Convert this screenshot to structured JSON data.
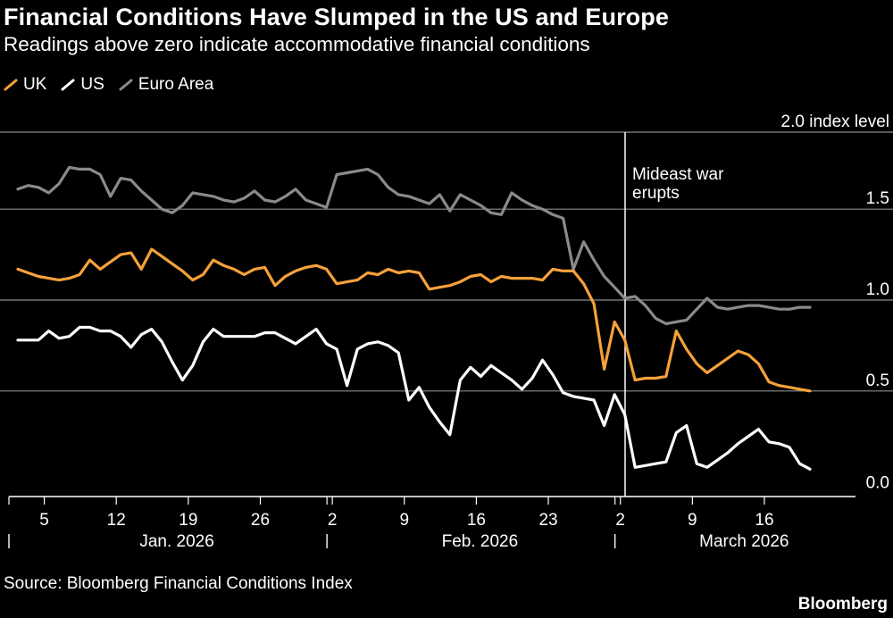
{
  "header": {
    "title": "Financial Conditions Have Slumped in the US and Europe",
    "subtitle": "Readings above zero indicate accommodative financial conditions"
  },
  "legend": [
    {
      "label": "UK",
      "color": "#f5a13a"
    },
    {
      "label": "US",
      "color": "#ffffff"
    },
    {
      "label": "Euro Area",
      "color": "#8a8a8a"
    }
  ],
  "footer": {
    "source": "Source: Bloomberg Financial Conditions Index",
    "brand": "Bloomberg"
  },
  "chart_data": {
    "type": "line",
    "title": "Financial Conditions Have Slumped in the US and Europe",
    "subtitle": "Readings above zero indicate accommodative financial conditions",
    "xlabel": "",
    "ylabel": "index level",
    "ylim": [
      -0.05,
      2.0
    ],
    "xlim": [
      0.0,
      78.0
    ],
    "grid": true,
    "y_ticks": [
      {
        "value": 0.0,
        "label": "0.0"
      },
      {
        "value": 0.5,
        "label": "0.5"
      },
      {
        "value": 1.0,
        "label": "1.0"
      },
      {
        "value": 1.5,
        "label": "1.5"
      },
      {
        "value": 2.0,
        "label": "2.0 index level"
      }
    ],
    "x_ticks": [
      {
        "day": 4,
        "label": "5"
      },
      {
        "day": 11,
        "label": "12"
      },
      {
        "day": 18,
        "label": "19"
      },
      {
        "day": 25,
        "label": "26"
      },
      {
        "day": 32,
        "label": "2"
      },
      {
        "day": 39,
        "label": "9"
      },
      {
        "day": 46,
        "label": "16"
      },
      {
        "day": 53,
        "label": "23"
      },
      {
        "day": 60,
        "label": "2"
      },
      {
        "day": 67,
        "label": "9"
      },
      {
        "day": 74,
        "label": "16"
      }
    ],
    "months": [
      {
        "label": "Jan. 2026",
        "start": 0.0,
        "end": 31.0
      },
      {
        "label": "Feb. 2026",
        "start": 31.0,
        "end": 59.0
      },
      {
        "label": "March 2026",
        "start": 59.0,
        "end": 78.0
      }
    ],
    "annotations": [
      {
        "day": 56.5,
        "text": [
          "Mideast war",
          "erupts"
        ]
      }
    ],
    "series": [
      {
        "name": "UK",
        "color": "#f5a13a",
        "days": [
          0,
          1,
          2,
          3,
          4,
          5,
          6,
          7,
          8,
          9,
          10,
          11,
          12,
          13,
          14,
          15,
          16,
          17,
          18,
          19,
          20,
          21,
          22,
          23,
          24,
          25,
          26,
          27,
          28,
          29,
          30,
          31,
          32,
          33,
          34,
          35,
          36,
          37,
          38,
          39,
          40,
          41,
          42,
          43,
          44,
          45,
          46,
          47,
          48,
          49,
          50,
          51,
          52,
          53,
          54,
          55,
          56,
          57,
          58,
          59,
          60,
          61,
          62,
          63,
          64,
          65,
          66,
          67,
          68,
          69,
          70,
          71,
          72,
          73,
          74,
          75,
          76,
          77
        ],
        "values": [
          1.17,
          1.15,
          1.13,
          1.12,
          1.11,
          1.12,
          1.14,
          1.22,
          1.17,
          1.21,
          1.25,
          1.26,
          1.17,
          1.28,
          1.24,
          1.2,
          1.16,
          1.11,
          1.14,
          1.22,
          1.19,
          1.17,
          1.14,
          1.17,
          1.18,
          1.08,
          1.13,
          1.16,
          1.18,
          1.19,
          1.17,
          1.09,
          1.1,
          1.11,
          1.15,
          1.14,
          1.17,
          1.15,
          1.16,
          1.15,
          1.06,
          1.07,
          1.08,
          1.1,
          1.13,
          1.14,
          1.1,
          1.13,
          1.12,
          1.12,
          1.12,
          1.11,
          1.17,
          1.16,
          1.16,
          1.09,
          0.98,
          0.62,
          0.88,
          0.78,
          0.56,
          0.57,
          0.57,
          0.58,
          0.83,
          0.73,
          0.65,
          0.6,
          0.64,
          0.68,
          0.72,
          0.7,
          0.65,
          0.55,
          0.53,
          0.52,
          0.51,
          0.5
        ]
      },
      {
        "name": "US",
        "color": "#ffffff",
        "days": [
          0,
          1,
          2,
          3,
          4,
          5,
          6,
          7,
          8,
          9,
          10,
          11,
          12,
          13,
          14,
          15,
          16,
          17,
          18,
          19,
          20,
          21,
          22,
          23,
          24,
          25,
          26,
          27,
          28,
          29,
          30,
          31,
          32,
          33,
          34,
          35,
          36,
          37,
          38,
          39,
          40,
          41,
          42,
          43,
          44,
          45,
          46,
          47,
          48,
          49,
          50,
          51,
          52,
          53,
          54,
          55,
          56,
          57,
          58,
          59,
          60,
          61,
          62,
          63,
          64,
          65,
          66,
          67,
          68,
          69,
          70,
          71,
          72,
          73,
          74,
          75,
          76,
          77
        ],
        "values": [
          0.78,
          0.78,
          0.78,
          0.83,
          0.79,
          0.8,
          0.85,
          0.85,
          0.83,
          0.83,
          0.8,
          0.74,
          0.81,
          0.84,
          0.77,
          0.66,
          0.56,
          0.64,
          0.77,
          0.84,
          0.8,
          0.8,
          0.8,
          0.8,
          0.82,
          0.82,
          0.79,
          0.76,
          0.8,
          0.84,
          0.76,
          0.73,
          0.53,
          0.73,
          0.76,
          0.77,
          0.75,
          0.71,
          0.45,
          0.52,
          0.41,
          0.33,
          0.26,
          0.56,
          0.63,
          0.58,
          0.64,
          0.6,
          0.56,
          0.51,
          0.57,
          0.67,
          0.59,
          0.49,
          0.47,
          0.46,
          0.45,
          0.31,
          0.48,
          0.37,
          0.08,
          0.09,
          0.1,
          0.11,
          0.27,
          0.31,
          0.1,
          0.08,
          0.12,
          0.16,
          0.21,
          0.25,
          0.29,
          0.22,
          0.21,
          0.19,
          0.1,
          0.07
        ]
      },
      {
        "name": "Euro Area",
        "color": "#8a8a8a",
        "days": [
          0,
          1,
          2,
          3,
          4,
          5,
          6,
          7,
          8,
          9,
          10,
          11,
          12,
          13,
          14,
          15,
          16,
          17,
          18,
          19,
          20,
          21,
          22,
          23,
          24,
          25,
          26,
          27,
          28,
          29,
          30,
          31,
          32,
          33,
          34,
          35,
          36,
          37,
          38,
          39,
          40,
          41,
          42,
          43,
          44,
          45,
          46,
          47,
          48,
          49,
          50,
          51,
          52,
          53,
          54,
          55,
          56,
          57,
          58,
          59,
          60,
          61,
          62,
          63,
          64,
          65,
          66,
          67,
          68,
          69,
          70,
          71,
          72,
          73,
          74,
          75,
          76,
          77
        ],
        "values": [
          1.61,
          1.63,
          1.62,
          1.59,
          1.64,
          1.73,
          1.72,
          1.72,
          1.69,
          1.57,
          1.67,
          1.66,
          1.6,
          1.55,
          1.5,
          1.48,
          1.52,
          1.59,
          1.58,
          1.57,
          1.55,
          1.54,
          1.56,
          1.6,
          1.55,
          1.54,
          1.57,
          1.61,
          1.55,
          1.53,
          1.51,
          1.69,
          1.7,
          1.71,
          1.72,
          1.69,
          1.62,
          1.58,
          1.57,
          1.55,
          1.53,
          1.58,
          1.49,
          1.58,
          1.55,
          1.52,
          1.48,
          1.47,
          1.59,
          1.55,
          1.52,
          1.5,
          1.47,
          1.45,
          1.17,
          1.32,
          1.22,
          1.13,
          1.07,
          1.01,
          1.02,
          0.97,
          0.9,
          0.87,
          0.88,
          0.89,
          0.95,
          1.01,
          0.96,
          0.95,
          0.96,
          0.97,
          0.97,
          0.96,
          0.95,
          0.95,
          0.96,
          0.96
        ]
      }
    ]
  }
}
